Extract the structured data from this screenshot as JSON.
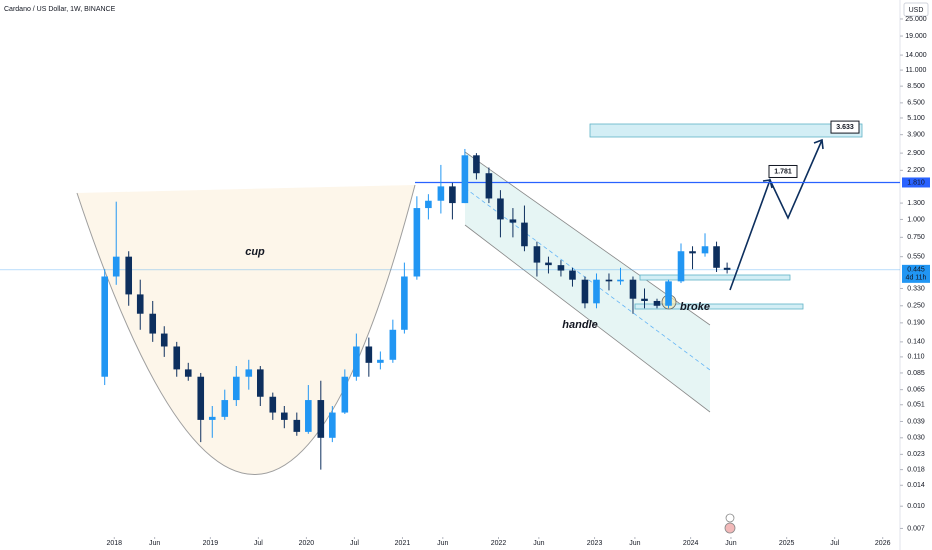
{
  "chart_data": {
    "type": "candlestick",
    "title": "Cardano / US Dollar, 1W, BINANCE",
    "currency": "USD",
    "log_scale": true,
    "up_color": "#2196f3",
    "down_color": "#0d2f5e",
    "xlim": [
      2016.81,
      2026.18
    ],
    "xticks": [
      {
        "value": 2018.0,
        "label": "2018"
      },
      {
        "value": 2018.42,
        "label": "Jun"
      },
      {
        "value": 2019.0,
        "label": "2019"
      },
      {
        "value": 2019.5,
        "label": "Jul"
      },
      {
        "value": 2020.0,
        "label": "2020"
      },
      {
        "value": 2020.5,
        "label": "Jul"
      },
      {
        "value": 2021.0,
        "label": "2021"
      },
      {
        "value": 2021.42,
        "label": "Jun"
      },
      {
        "value": 2022.0,
        "label": "2022"
      },
      {
        "value": 2022.42,
        "label": "Jun"
      },
      {
        "value": 2023.0,
        "label": "2023"
      },
      {
        "value": 2023.42,
        "label": "Jun"
      },
      {
        "value": 2024.0,
        "label": "2024"
      },
      {
        "value": 2024.42,
        "label": "Jun"
      },
      {
        "value": 2025.0,
        "label": "2025"
      },
      {
        "value": 2025.5,
        "label": "Jul"
      },
      {
        "value": 2026.0,
        "label": "2026"
      }
    ],
    "ylim": [
      0.0063,
      33.9
    ],
    "yticks": [
      {
        "value": 25,
        "label": "25.000"
      },
      {
        "value": 19,
        "label": "19.000"
      },
      {
        "value": 14,
        "label": "14.000"
      },
      {
        "value": 11,
        "label": "11.000"
      },
      {
        "value": 8.5,
        "label": "8.500"
      },
      {
        "value": 6.5,
        "label": "6.500"
      },
      {
        "value": 5.1,
        "label": "5.100"
      },
      {
        "value": 3.9,
        "label": "3.900"
      },
      {
        "value": 2.9,
        "label": "2.900"
      },
      {
        "value": 2.2,
        "label": "2.200"
      },
      {
        "value": 1.3,
        "label": "1.300"
      },
      {
        "value": 1,
        "label": "1.000"
      },
      {
        "value": 0.75,
        "label": "0.750"
      },
      {
        "value": 0.55,
        "label": "0.550"
      },
      {
        "value": 0.33,
        "label": "0.330"
      },
      {
        "value": 0.25,
        "label": "0.250"
      },
      {
        "value": 0.19,
        "label": "0.190"
      },
      {
        "value": 0.14,
        "label": "0.140"
      },
      {
        "value": 0.11,
        "label": "0.110"
      },
      {
        "value": 0.085,
        "label": "0.085"
      },
      {
        "value": 0.065,
        "label": "0.065"
      },
      {
        "value": 0.051,
        "label": "0.051"
      },
      {
        "value": 0.039,
        "label": "0.039"
      },
      {
        "value": 0.03,
        "label": "0.030"
      },
      {
        "value": 0.023,
        "label": "0.023"
      },
      {
        "value": 0.018,
        "label": "0.018"
      },
      {
        "value": 0.014,
        "label": "0.014"
      },
      {
        "value": 0.01,
        "label": "0.010"
      },
      {
        "value": 0.007,
        "label": "0.007"
      }
    ],
    "x": [
      2017.9,
      2018.02,
      2018.15,
      2018.27,
      2018.4,
      2018.52,
      2018.65,
      2018.77,
      2018.9,
      2019.02,
      2019.15,
      2019.27,
      2019.4,
      2019.52,
      2019.65,
      2019.77,
      2019.9,
      2020.02,
      2020.15,
      2020.27,
      2020.4,
      2020.52,
      2020.65,
      2020.77,
      2020.9,
      2021.02,
      2021.15,
      2021.27,
      2021.4,
      2021.52,
      2021.65,
      2021.77,
      2021.9,
      2022.02,
      2022.15,
      2022.27,
      2022.4,
      2022.52,
      2022.65,
      2022.77,
      2022.9,
      2023.02,
      2023.15,
      2023.27,
      2023.4,
      2023.52,
      2023.65,
      2023.77,
      2023.9,
      2024.02,
      2024.15,
      2024.27,
      2024.38
    ],
    "open": [
      0.08,
      0.4,
      0.55,
      0.3,
      0.22,
      0.16,
      0.13,
      0.09,
      0.08,
      0.04,
      0.042,
      0.055,
      0.08,
      0.09,
      0.058,
      0.045,
      0.04,
      0.033,
      0.055,
      0.03,
      0.045,
      0.08,
      0.13,
      0.1,
      0.105,
      0.17,
      0.4,
      1.2,
      1.35,
      1.7,
      1.3,
      2.8,
      2.1,
      1.4,
      1.0,
      0.95,
      0.65,
      0.5,
      0.48,
      0.44,
      0.38,
      0.26,
      0.38,
      0.37,
      0.38,
      0.28,
      0.27,
      0.25,
      0.37,
      0.6,
      0.58,
      0.65,
      0.46
    ],
    "high": [
      0.45,
      1.33,
      0.6,
      0.38,
      0.27,
      0.18,
      0.14,
      0.1,
      0.085,
      0.05,
      0.065,
      0.095,
      0.105,
      0.095,
      0.062,
      0.05,
      0.045,
      0.07,
      0.075,
      0.05,
      0.09,
      0.16,
      0.15,
      0.12,
      0.2,
      0.5,
      1.45,
      1.5,
      2.4,
      1.8,
      3.1,
      2.9,
      2.3,
      1.6,
      1.2,
      1.25,
      0.7,
      0.55,
      0.52,
      0.46,
      0.4,
      0.42,
      0.42,
      0.46,
      0.4,
      0.33,
      0.28,
      0.38,
      0.68,
      0.65,
      0.8,
      0.7,
      0.5
    ],
    "low": [
      0.07,
      0.35,
      0.25,
      0.17,
      0.14,
      0.11,
      0.08,
      0.075,
      0.028,
      0.03,
      0.04,
      0.05,
      0.065,
      0.05,
      0.04,
      0.035,
      0.031,
      0.032,
      0.018,
      0.028,
      0.044,
      0.075,
      0.08,
      0.09,
      0.1,
      0.16,
      0.38,
      1.0,
      1.1,
      1.0,
      1.3,
      1.9,
      1.3,
      0.75,
      0.75,
      0.6,
      0.4,
      0.42,
      0.4,
      0.34,
      0.24,
      0.24,
      0.32,
      0.35,
      0.22,
      0.24,
      0.24,
      0.24,
      0.36,
      0.45,
      0.55,
      0.43,
      0.42
    ],
    "close": [
      0.4,
      0.55,
      0.3,
      0.22,
      0.16,
      0.13,
      0.09,
      0.08,
      0.04,
      0.042,
      0.055,
      0.08,
      0.09,
      0.058,
      0.045,
      0.04,
      0.033,
      0.055,
      0.03,
      0.045,
      0.08,
      0.13,
      0.1,
      0.105,
      0.17,
      0.4,
      1.2,
      1.35,
      1.7,
      1.3,
      2.8,
      2.1,
      1.4,
      1.0,
      0.95,
      0.65,
      0.5,
      0.48,
      0.44,
      0.38,
      0.26,
      0.38,
      0.37,
      0.38,
      0.28,
      0.27,
      0.25,
      0.37,
      0.6,
      0.58,
      0.65,
      0.46,
      0.445
    ],
    "level": {
      "value": 1.81,
      "label": "1.810",
      "color": "#2962ff"
    },
    "last_price": {
      "value": 0.445,
      "label": "0.445",
      "countdown": "4d 11h",
      "color": "#2196f3"
    },
    "targets": [
      {
        "value": 1.781
      },
      {
        "value": 3.633
      }
    ],
    "annotations": [
      "cup",
      "handle",
      "broke"
    ]
  }
}
